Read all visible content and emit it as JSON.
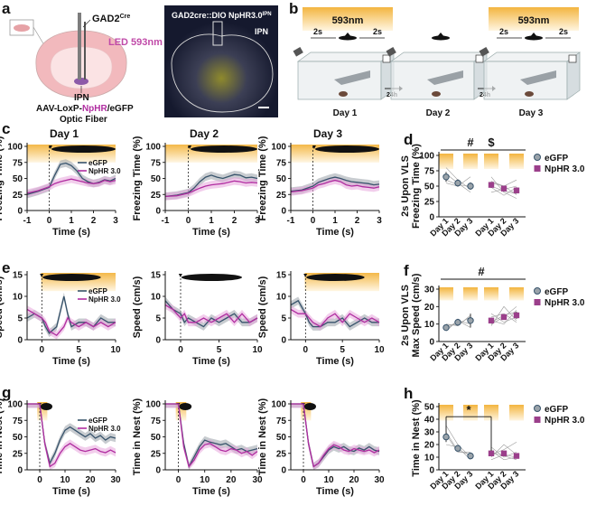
{
  "panel_letters": [
    "a",
    "b",
    "c",
    "d",
    "e",
    "f",
    "g",
    "h"
  ],
  "panel_a": {
    "gad_label": "GAD2",
    "gad_superscript": "Cre",
    "led_label": "LED 593nm",
    "ipn_label": "IPN",
    "virus_prefix": "AAV-LoxP-",
    "virus_nphr": "NpHR",
    "virus_suffix": "/eGFP",
    "fiber_label": "Optic Fiber",
    "micrograph_title": "GAD2cre::DIO NpHR3.0",
    "micrograph_superscript": "IPN",
    "micrograph_region": "IPN"
  },
  "panel_b": {
    "light_label": "593nm",
    "interval_label": "2s",
    "gap_label": "24h",
    "days": [
      "Day 1",
      "Day 2",
      "Day 3"
    ]
  },
  "colors": {
    "egfp": "#37536b",
    "nphr": "#b02da0",
    "egfp_band": "#9aa3aa",
    "nphr_band": "#e8a5dd",
    "light_bar": "#f3b53f",
    "text": "#111111"
  },
  "legend": {
    "egfp": "eGFP",
    "nphr": "NpHR 3.0"
  },
  "chart_data": [
    {
      "id": "c",
      "type": "line",
      "ylabel": "Freezing Time (%)",
      "xlabel": "Time (s)",
      "xlim": [
        -1,
        3
      ],
      "ylim": [
        0,
        100
      ],
      "xticks": [
        -1,
        0,
        1,
        2,
        3
      ],
      "yticks": [
        0,
        25,
        50,
        75,
        100
      ],
      "light_window": [
        -1,
        3
      ],
      "stimulus_window": [
        0.1,
        3
      ],
      "subplots": [
        {
          "title": "Day 1",
          "legend": true,
          "x": [
            -1,
            -0.5,
            0,
            0.25,
            0.5,
            0.75,
            1,
            1.25,
            1.5,
            1.75,
            2,
            2.25,
            2.5,
            2.75,
            3
          ],
          "egfp": [
            25,
            30,
            36,
            55,
            72,
            74,
            70,
            62,
            50,
            45,
            42,
            44,
            48,
            46,
            50
          ],
          "nphr": [
            27,
            31,
            37,
            42,
            45,
            47,
            49,
            47,
            45,
            43,
            42,
            43,
            47,
            45,
            47
          ]
        },
        {
          "title": "Day 2",
          "legend": false,
          "x": [
            -1,
            -0.5,
            0,
            0.25,
            0.5,
            0.75,
            1,
            1.25,
            1.5,
            1.75,
            2,
            2.25,
            2.5,
            2.75,
            3
          ],
          "egfp": [
            22,
            24,
            28,
            35,
            45,
            52,
            55,
            52,
            50,
            53,
            56,
            55,
            51,
            52,
            50
          ],
          "nphr": [
            22,
            23,
            27,
            31,
            35,
            38,
            40,
            41,
            42,
            44,
            46,
            45,
            43,
            44,
            43
          ]
        },
        {
          "title": "Day 3",
          "legend": false,
          "x": [
            -1,
            -0.5,
            0,
            0.25,
            0.5,
            0.75,
            1,
            1.25,
            1.5,
            1.75,
            2,
            2.25,
            2.5,
            2.75,
            3
          ],
          "egfp": [
            30,
            32,
            38,
            44,
            47,
            50,
            52,
            50,
            47,
            45,
            44,
            43,
            42,
            40,
            41
          ],
          "nphr": [
            29,
            31,
            35,
            40,
            42,
            45,
            47,
            45,
            40,
            38,
            39,
            37,
            36,
            35,
            37
          ]
        }
      ]
    },
    {
      "id": "d",
      "type": "scatter",
      "ylabel": "Freezing Time (%)",
      "ylabel2": "2s Upon VLS",
      "categories": [
        "Day 1",
        "Day 2",
        "Day 3",
        "Day 1",
        "Day 2",
        "Day 3"
      ],
      "ylim": [
        0,
        100
      ],
      "yticks": [
        0,
        25,
        50,
        75,
        100
      ],
      "significance": [
        "#",
        "$"
      ],
      "series": [
        {
          "name": "eGFP",
          "values": [
            65,
            55,
            50
          ],
          "sem": [
            8,
            6,
            6
          ]
        },
        {
          "name": "NpHR 3.0",
          "values": [
            52,
            46,
            43
          ],
          "sem": [
            5,
            5,
            5
          ]
        }
      ],
      "individual_egfp": [
        [
          80,
          60,
          45
        ],
        [
          55,
          50,
          65
        ],
        [
          70,
          55,
          40
        ],
        [
          60,
          52,
          50
        ]
      ],
      "individual_nphr": [
        [
          65,
          40,
          30
        ],
        [
          55,
          50,
          60
        ],
        [
          48,
          35,
          48
        ],
        [
          58,
          50,
          36
        ],
        [
          40,
          45,
          50
        ],
        [
          50,
          42,
          38
        ]
      ]
    },
    {
      "id": "e",
      "type": "line",
      "ylabel": "Speed (cm/s)",
      "xlabel": "Time (s)",
      "xlim": [
        -2,
        10
      ],
      "ylim": [
        0,
        15
      ],
      "xticks": [
        0,
        5,
        10
      ],
      "yticks": [
        0,
        5,
        10,
        15
      ],
      "light_window": [
        -0.1,
        10
      ],
      "stimulus_window": [
        0.1,
        8
      ],
      "subplots": [
        {
          "title": "",
          "legend": true,
          "x": [
            -2,
            -1,
            0,
            0.5,
            1,
            2,
            3,
            3.5,
            4,
            5,
            6,
            7,
            8,
            9,
            10
          ],
          "egfp": [
            5,
            6,
            5,
            3,
            1.5,
            3,
            10,
            6,
            3,
            4,
            4,
            3,
            5,
            4,
            4
          ],
          "nphr": [
            7,
            6,
            5,
            4,
            2,
            1,
            3,
            5,
            4,
            3,
            4,
            3,
            4,
            3,
            4
          ]
        },
        {
          "title": "",
          "legend": false,
          "x": [
            -2,
            -1,
            0,
            0.5,
            1,
            2,
            3,
            4,
            5,
            6,
            7,
            8,
            9,
            10
          ],
          "egfp": [
            9,
            7,
            6,
            4,
            5,
            4,
            3,
            5,
            4,
            5,
            6,
            4,
            4,
            5
          ],
          "nphr": [
            8,
            7,
            5,
            6,
            4,
            4,
            5,
            4,
            5,
            6,
            4,
            6,
            4,
            5
          ]
        },
        {
          "title": "",
          "legend": false,
          "x": [
            -2,
            -1,
            0,
            0.5,
            1,
            2,
            3,
            4,
            5,
            6,
            7,
            8,
            9,
            10
          ],
          "egfp": [
            8,
            9,
            6,
            4,
            3,
            3,
            4,
            4,
            5,
            3,
            4,
            5,
            4,
            4
          ],
          "nphr": [
            7,
            6,
            6,
            5,
            4,
            3,
            5,
            6,
            4,
            6,
            5,
            4,
            5,
            4
          ]
        }
      ]
    },
    {
      "id": "f",
      "type": "scatter",
      "ylabel": "Max Speed (cm/s)",
      "ylabel2": "2s Upon VLS",
      "categories": [
        "Day 1",
        "Day 2",
        "Day 3",
        "Day 1",
        "Day 2",
        "Day 3"
      ],
      "ylim": [
        0,
        30
      ],
      "yticks": [
        0,
        10,
        20,
        30
      ],
      "significance": [
        "#"
      ],
      "series": [
        {
          "name": "eGFP",
          "values": [
            8,
            11,
            12
          ],
          "sem": [
            1.5,
            2,
            4
          ]
        },
        {
          "name": "NpHR 3.0",
          "values": [
            12,
            14,
            15
          ],
          "sem": [
            1.5,
            1.5,
            2
          ]
        }
      ],
      "individual_egfp": [
        [
          7,
          12,
          10
        ],
        [
          9,
          10,
          14
        ],
        [
          6,
          12,
          8
        ],
        [
          10,
          9,
          15
        ]
      ],
      "individual_nphr": [
        [
          9,
          20,
          12
        ],
        [
          12,
          10,
          18
        ],
        [
          14,
          16,
          11
        ],
        [
          10,
          14,
          20
        ],
        [
          16,
          11,
          14
        ],
        [
          11,
          15,
          17
        ]
      ]
    },
    {
      "id": "g",
      "type": "line",
      "ylabel": "Time in Nest (%)",
      "xlabel": "Time (s)",
      "xlim": [
        -5,
        30
      ],
      "ylim": [
        0,
        100
      ],
      "xticks": [
        0,
        10,
        20,
        30
      ],
      "yticks": [
        0,
        25,
        50,
        75,
        100
      ],
      "light_window": [
        -1,
        3
      ],
      "stimulus_window": [
        0.3,
        5
      ],
      "subplots": [
        {
          "title": "",
          "legend": true,
          "x": [
            -5,
            -2,
            0,
            2,
            4,
            6,
            8,
            10,
            12,
            14,
            16,
            18,
            20,
            22,
            24,
            26,
            28,
            30
          ],
          "egfp": [
            100,
            100,
            100,
            40,
            10,
            25,
            45,
            60,
            65,
            60,
            55,
            50,
            55,
            48,
            52,
            45,
            50,
            48
          ],
          "nphr": [
            100,
            100,
            100,
            40,
            5,
            10,
            25,
            35,
            40,
            35,
            30,
            28,
            30,
            32,
            28,
            26,
            30,
            26
          ]
        },
        {
          "title": "",
          "legend": false,
          "x": [
            -5,
            -2,
            0,
            2,
            4,
            6,
            8,
            10,
            12,
            14,
            16,
            18,
            20,
            22,
            24,
            26,
            28,
            30
          ],
          "egfp": [
            100,
            100,
            100,
            40,
            5,
            20,
            35,
            45,
            42,
            40,
            38,
            40,
            35,
            30,
            32,
            28,
            30,
            32
          ],
          "nphr": [
            100,
            100,
            100,
            35,
            5,
            15,
            30,
            38,
            40,
            35,
            30,
            28,
            32,
            30,
            25,
            28,
            22,
            28
          ]
        },
        {
          "title": "",
          "legend": false,
          "x": [
            -5,
            -2,
            0,
            2,
            4,
            6,
            8,
            10,
            12,
            14,
            16,
            18,
            20,
            22,
            24,
            26,
            28,
            30
          ],
          "egfp": [
            100,
            100,
            100,
            40,
            5,
            10,
            20,
            30,
            35,
            32,
            35,
            30,
            28,
            33,
            30,
            35,
            30,
            28
          ],
          "nphr": [
            100,
            100,
            100,
            40,
            5,
            10,
            22,
            32,
            38,
            35,
            30,
            28,
            32,
            30,
            28,
            30,
            26,
            30
          ]
        }
      ]
    },
    {
      "id": "h",
      "type": "scatter",
      "ylabel": "Time in Nest (%)",
      "categories": [
        "Day 1",
        "Day 2",
        "Day 3",
        "Day 1",
        "Day 2",
        "Day 3"
      ],
      "ylim": [
        0,
        50
      ],
      "yticks": [
        0,
        10,
        20,
        30,
        40,
        50
      ],
      "significance": [
        "*"
      ],
      "series": [
        {
          "name": "eGFP",
          "values": [
            26,
            17,
            11
          ],
          "sem": [
            4,
            2,
            2
          ]
        },
        {
          "name": "NpHR 3.0",
          "values": [
            13,
            13,
            11
          ],
          "sem": [
            2,
            2,
            2
          ]
        }
      ],
      "individual_egfp": [
        [
          35,
          20,
          10
        ],
        [
          30,
          15,
          12
        ],
        [
          20,
          18,
          8
        ],
        [
          28,
          14,
          14
        ]
      ],
      "individual_nphr": [
        [
          10,
          20,
          12
        ],
        [
          15,
          8,
          10
        ],
        [
          12,
          16,
          22
        ],
        [
          8,
          12,
          10
        ],
        [
          18,
          10,
          14
        ],
        [
          14,
          11,
          8
        ]
      ]
    }
  ]
}
